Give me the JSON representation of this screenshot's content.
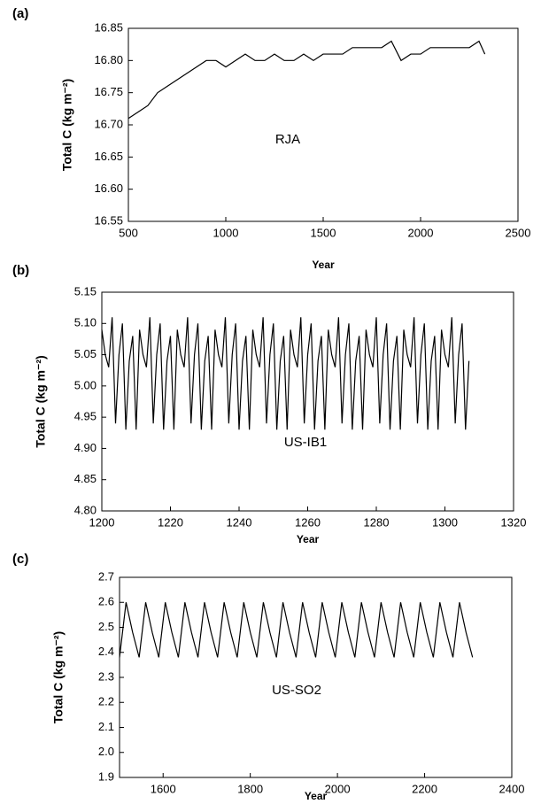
{
  "chart_data": [
    {
      "type": "line",
      "panel_label": "(a)",
      "annotation": "RJA",
      "xlabel": "Year",
      "ylabel": "Total C (kg m⁻²)",
      "xlim": [
        500,
        2500
      ],
      "xticks": [
        500,
        1000,
        1500,
        2000,
        2500
      ],
      "ylim": [
        16.55,
        16.85
      ],
      "yticks": [
        16.55,
        {
          "value": 16.6,
          "label": "16.60"
        },
        16.65,
        {
          "value": 16.7,
          "label": "16.70"
        },
        16.75,
        {
          "value": 16.8,
          "label": "16.80"
        },
        16.85
      ],
      "x": [
        500,
        550,
        600,
        650,
        700,
        750,
        800,
        850,
        900,
        950,
        1000,
        1050,
        1100,
        1150,
        1200,
        1250,
        1300,
        1350,
        1400,
        1450,
        1500,
        1550,
        1600,
        1650,
        1700,
        1750,
        1800,
        1850,
        1900,
        1950,
        2000,
        2050,
        2100,
        2150,
        2200,
        2250,
        2300,
        2330
      ],
      "series": [
        {
          "color": "#000000",
          "values": [
            16.71,
            16.72,
            16.73,
            16.75,
            16.76,
            16.77,
            16.78,
            16.79,
            16.8,
            16.8,
            16.79,
            16.8,
            16.81,
            16.8,
            16.8,
            16.81,
            16.8,
            16.8,
            16.81,
            16.8,
            16.81,
            16.81,
            16.81,
            16.82,
            16.82,
            16.82,
            16.82,
            16.83,
            16.8,
            16.81,
            16.81,
            16.82,
            16.82,
            16.82,
            16.82,
            16.82,
            16.83,
            16.81
          ]
        }
      ]
    },
    {
      "type": "line",
      "panel_label": "(b)",
      "annotation": "US-IB1",
      "xlabel": "Year",
      "ylabel": "Total C (kg m⁻²)",
      "xlim": [
        1200,
        1320
      ],
      "xticks": [
        1200,
        1220,
        1240,
        1260,
        1280,
        1300,
        1320
      ],
      "ylim": [
        4.8,
        5.15
      ],
      "yticks": [
        {
          "value": 4.8,
          "label": "4.80"
        },
        4.85,
        {
          "value": 4.9,
          "label": "4.90"
        },
        4.95,
        {
          "value": 5.0,
          "label": "5.00"
        },
        5.05,
        {
          "value": 5.1,
          "label": "5.10"
        },
        5.15
      ],
      "x": [
        1200,
        1201,
        1202,
        1203,
        1204,
        1205,
        1206,
        1207,
        1208,
        1209,
        1210,
        1211,
        1212,
        1213,
        1214,
        1215,
        1216,
        1217,
        1218,
        1219,
        1220,
        1221,
        1222,
        1223,
        1224,
        1225,
        1226,
        1227,
        1228,
        1229,
        1230,
        1231,
        1232,
        1233,
        1234,
        1235,
        1236,
        1237,
        1238,
        1239,
        1240,
        1241,
        1242,
        1243,
        1244,
        1245,
        1246,
        1247,
        1248,
        1249,
        1250,
        1251,
        1252,
        1253,
        1254,
        1255,
        1256,
        1257,
        1258,
        1259,
        1260,
        1261,
        1262,
        1263,
        1264,
        1265,
        1266,
        1267,
        1268,
        1269,
        1270,
        1271,
        1272,
        1273,
        1274,
        1275,
        1276,
        1277,
        1278,
        1279,
        1280,
        1281,
        1282,
        1283,
        1284,
        1285,
        1286,
        1287,
        1288,
        1289,
        1290,
        1291,
        1292,
        1293,
        1294,
        1295,
        1296,
        1297,
        1298,
        1299,
        1300,
        1301,
        1302,
        1303,
        1304,
        1305,
        1306,
        1307
      ],
      "series": [
        {
          "color": "#000000",
          "values": [
            5.09,
            5.05,
            5.03,
            5.11,
            4.94,
            5.05,
            5.1,
            4.93,
            5.04,
            5.08,
            4.93,
            5.09,
            5.05,
            5.03,
            5.11,
            4.94,
            5.05,
            5.1,
            4.93,
            5.04,
            5.08,
            4.93,
            5.09,
            5.05,
            5.03,
            5.11,
            4.94,
            5.05,
            5.1,
            4.93,
            5.04,
            5.08,
            4.93,
            5.09,
            5.05,
            5.03,
            5.11,
            4.94,
            5.05,
            5.1,
            4.93,
            5.04,
            5.08,
            4.93,
            5.09,
            5.05,
            5.03,
            5.11,
            4.94,
            5.05,
            5.1,
            4.93,
            5.04,
            5.08,
            4.93,
            5.09,
            5.05,
            5.03,
            5.11,
            4.94,
            5.05,
            5.1,
            4.93,
            5.04,
            5.08,
            4.93,
            5.09,
            5.05,
            5.03,
            5.11,
            4.94,
            5.05,
            5.1,
            4.93,
            5.04,
            5.08,
            4.93,
            5.09,
            5.05,
            5.03,
            5.11,
            4.94,
            5.05,
            5.1,
            4.93,
            5.04,
            5.08,
            4.93,
            5.09,
            5.05,
            5.03,
            5.11,
            4.94,
            5.05,
            5.1,
            4.93,
            5.04,
            5.08,
            4.93,
            5.09,
            5.05,
            5.03,
            5.11,
            4.94,
            5.05,
            5.1,
            4.93,
            5.04
          ]
        }
      ]
    },
    {
      "type": "line",
      "panel_label": "(c)",
      "annotation": "US-SO2",
      "xlabel": "Year",
      "ylabel": "Total C (kg m⁻²)",
      "xlim": [
        1500,
        2400
      ],
      "xticks": [
        1600,
        1800,
        2000,
        2200,
        2400
      ],
      "ylim": [
        1.9,
        2.7
      ],
      "yticks": [
        1.9,
        {
          "value": 2.0,
          "label": "2.0"
        },
        2.1,
        2.2,
        2.3,
        2.4,
        2.5,
        2.6,
        2.7
      ],
      "x": [
        1500,
        1515,
        1530,
        1545,
        1560,
        1575,
        1590,
        1605,
        1620,
        1635,
        1650,
        1665,
        1680,
        1695,
        1710,
        1725,
        1740,
        1755,
        1770,
        1785,
        1800,
        1815,
        1830,
        1845,
        1860,
        1875,
        1890,
        1905,
        1920,
        1935,
        1950,
        1965,
        1980,
        1995,
        2010,
        2025,
        2040,
        2055,
        2070,
        2085,
        2100,
        2115,
        2130,
        2145,
        2160,
        2175,
        2190,
        2205,
        2220,
        2235,
        2250,
        2265,
        2280,
        2295,
        2310
      ],
      "series": [
        {
          "color": "#000000",
          "values": [
            2.38,
            2.6,
            2.48,
            2.38,
            2.6,
            2.48,
            2.38,
            2.6,
            2.48,
            2.38,
            2.6,
            2.48,
            2.38,
            2.6,
            2.48,
            2.38,
            2.6,
            2.48,
            2.38,
            2.6,
            2.48,
            2.38,
            2.6,
            2.48,
            2.38,
            2.6,
            2.48,
            2.38,
            2.6,
            2.48,
            2.38,
            2.6,
            2.48,
            2.38,
            2.6,
            2.48,
            2.38,
            2.6,
            2.48,
            2.38,
            2.6,
            2.48,
            2.38,
            2.6,
            2.48,
            2.38,
            2.6,
            2.48,
            2.38,
            2.6,
            2.48,
            2.38,
            2.6,
            2.48,
            2.38
          ]
        }
      ]
    }
  ]
}
